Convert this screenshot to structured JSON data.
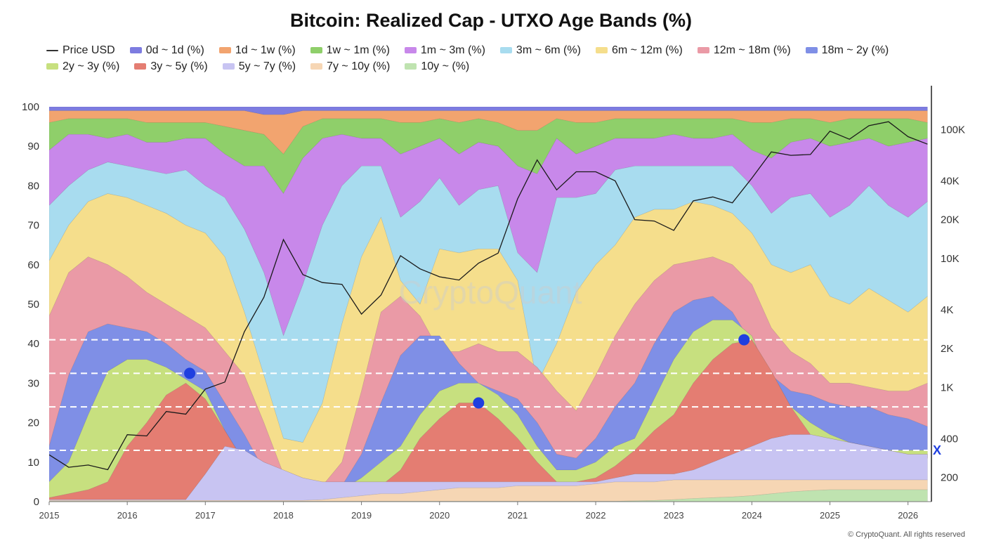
{
  "title": "Bitcoin: Realized Cap - UTXO Age Bands (%)",
  "footer": "© CryptoQuant. All rights reserved",
  "watermark": "CryptoQuant",
  "marker_label": "X",
  "legend": [
    {
      "label": "Price USD",
      "color": "#333333",
      "kind": "line"
    },
    {
      "label": "0d ~ 1d (%)",
      "color": "#7d7ce0",
      "kind": "area"
    },
    {
      "label": "1d ~ 1w (%)",
      "color": "#f2a46f",
      "kind": "area"
    },
    {
      "label": "1w ~ 1m (%)",
      "color": "#8fcf6a",
      "kind": "area"
    },
    {
      "label": "1m ~ 3m (%)",
      "color": "#c888ea",
      "kind": "area"
    },
    {
      "label": "3m ~ 6m (%)",
      "color": "#a8dcef",
      "kind": "area"
    },
    {
      "label": "6m ~ 12m (%)",
      "color": "#f5de8c",
      "kind": "area"
    },
    {
      "label": "12m ~ 18m (%)",
      "color": "#ea9aa6",
      "kind": "area"
    },
    {
      "label": "18m ~ 2y (%)",
      "color": "#7f8fe6",
      "kind": "area"
    },
    {
      "label": "2y ~ 3y (%)",
      "color": "#c7e07f",
      "kind": "area"
    },
    {
      "label": "3y ~ 5y (%)",
      "color": "#e47d72",
      "kind": "area"
    },
    {
      "label": "5y ~ 7y (%)",
      "color": "#c8c4f2",
      "kind": "area"
    },
    {
      "label": "7y ~ 10y (%)",
      "color": "#f6d6b4",
      "kind": "area"
    },
    {
      "label": "10y ~ (%)",
      "color": "#bfe3b0",
      "kind": "area"
    }
  ],
  "chart_data": {
    "type": "area",
    "title": "Bitcoin: Realized Cap - UTXO Age Bands (%)",
    "stacked": true,
    "x_ticks": [
      "2015",
      "2016",
      "2017",
      "2018",
      "2019",
      "2020",
      "2021",
      "2022",
      "2023",
      "2024",
      "2025",
      "2026"
    ],
    "ylim": [
      0,
      100
    ],
    "y_ticks": [
      "0",
      "10",
      "20",
      "30",
      "40",
      "50",
      "60",
      "70",
      "80",
      "90",
      "100"
    ],
    "y2_scale": "log",
    "y2_ticks": [
      "200",
      "400",
      "1K",
      "2K",
      "4K",
      "10K",
      "20K",
      "40K",
      "100K"
    ],
    "y2_tick_values": [
      200,
      400,
      1000,
      2000,
      4000,
      10000,
      20000,
      40000,
      100000
    ],
    "x": [
      2015.0,
      2015.25,
      2015.5,
      2015.75,
      2016.0,
      2016.25,
      2016.5,
      2016.75,
      2017.0,
      2017.25,
      2017.5,
      2017.75,
      2018.0,
      2018.25,
      2018.5,
      2018.75,
      2019.0,
      2019.25,
      2019.5,
      2019.75,
      2020.0,
      2020.25,
      2020.5,
      2020.75,
      2021.0,
      2021.25,
      2021.5,
      2021.75,
      2022.0,
      2022.25,
      2022.5,
      2022.75,
      2023.0,
      2023.25,
      2023.5,
      2023.75,
      2024.0,
      2024.25,
      2024.5,
      2024.75,
      2025.0,
      2025.25,
      2025.5,
      2025.75,
      2026.0,
      2026.25
    ],
    "cumulative_boundaries_top_down": [
      {
        "name": "0d ~ 1d (%)",
        "top": 100
      },
      {
        "name": "1d ~ 1w (%)",
        "top": [
          99,
          99,
          99,
          99,
          99,
          99,
          99,
          99,
          99,
          99,
          99,
          98,
          98,
          99,
          99,
          99,
          99,
          99,
          99,
          99,
          99,
          99,
          99,
          99,
          99,
          99,
          99,
          99,
          99,
          99,
          99,
          99,
          99,
          99,
          99,
          99,
          99,
          99,
          99,
          99,
          99,
          99,
          99,
          99,
          99,
          99
        ]
      },
      {
        "name": "1w ~ 1m (%)",
        "top": [
          96,
          97,
          97,
          97,
          97,
          96,
          96,
          96,
          96,
          95,
          94,
          93,
          88,
          95,
          97,
          97,
          97,
          97,
          96,
          96,
          97,
          96,
          97,
          96,
          94,
          94,
          97,
          96,
          96,
          97,
          97,
          97,
          97,
          97,
          97,
          97,
          96,
          96,
          97,
          97,
          96,
          97,
          97,
          97,
          97,
          96
        ]
      },
      {
        "name": "1m ~ 3m (%)",
        "top": [
          89,
          93,
          93,
          92,
          93,
          91,
          91,
          92,
          92,
          88,
          85,
          85,
          78,
          87,
          92,
          93,
          92,
          92,
          88,
          90,
          92,
          88,
          91,
          90,
          85,
          83,
          92,
          88,
          90,
          92,
          92,
          92,
          93,
          92,
          92,
          93,
          89,
          87,
          91,
          92,
          90,
          91,
          92,
          90,
          91,
          92
        ]
      },
      {
        "name": "3m ~ 6m (%)",
        "top": [
          75,
          80,
          84,
          86,
          85,
          84,
          83,
          84,
          80,
          77,
          69,
          58,
          42,
          55,
          70,
          80,
          85,
          85,
          72,
          76,
          82,
          75,
          79,
          80,
          63,
          58,
          77,
          77,
          78,
          84,
          85,
          85,
          85,
          85,
          85,
          85,
          80,
          73,
          77,
          78,
          72,
          75,
          80,
          75,
          72,
          76
        ]
      },
      {
        "name": "6m ~ 12m (%)",
        "top": [
          61,
          70,
          76,
          78,
          77,
          75,
          73,
          70,
          68,
          62,
          48,
          32,
          16,
          15,
          25,
          45,
          62,
          72,
          56,
          50,
          64,
          63,
          64,
          64,
          56,
          30,
          40,
          53,
          60,
          65,
          72,
          74,
          74,
          76,
          75,
          73,
          68,
          60,
          58,
          60,
          52,
          50,
          54,
          51,
          48,
          52
        ]
      },
      {
        "name": "12m ~ 18m (%)",
        "top": [
          47,
          58,
          62,
          60,
          57,
          53,
          50,
          47,
          44,
          38,
          32,
          20,
          7,
          4,
          4,
          10,
          28,
          48,
          52,
          47,
          38,
          38,
          40,
          38,
          38,
          34,
          28,
          23,
          32,
          42,
          50,
          56,
          60,
          61,
          62,
          60,
          55,
          44,
          38,
          35,
          30,
          30,
          29,
          28,
          28,
          30
        ]
      },
      {
        "name": "18m ~ 2y (%)",
        "top": [
          14,
          32,
          43,
          45,
          44,
          43,
          40,
          36,
          33,
          25,
          17,
          8,
          5,
          3,
          3,
          4,
          12,
          25,
          37,
          42,
          42,
          35,
          30,
          28,
          26,
          20,
          12,
          11,
          16,
          24,
          30,
          40,
          48,
          51,
          52,
          48,
          40,
          32,
          28,
          27,
          25,
          24,
          24,
          22,
          21,
          19
        ]
      },
      {
        "name": "2y ~ 3y (%)",
        "top": [
          5,
          10,
          22,
          33,
          36,
          36,
          34,
          31,
          28,
          18,
          10,
          4,
          3,
          2,
          2,
          3,
          6,
          10,
          14,
          22,
          28,
          30,
          30,
          27,
          22,
          14,
          8,
          8,
          10,
          14,
          16,
          26,
          36,
          43,
          46,
          46,
          42,
          30,
          24,
          20,
          17,
          15,
          14,
          13,
          13,
          13
        ]
      },
      {
        "name": "3y ~ 5y (%)",
        "top": [
          1,
          2,
          3,
          5,
          14,
          20,
          27,
          30,
          26,
          18,
          10,
          3,
          2,
          1,
          1,
          2,
          2,
          4,
          8,
          16,
          21,
          25,
          25,
          21,
          16,
          10,
          5,
          5,
          6,
          9,
          13,
          18,
          22,
          30,
          36,
          40,
          41,
          33,
          24,
          17,
          14,
          13,
          12,
          11,
          11,
          11
        ]
      },
      {
        "name": "5y ~ 7y (%)",
        "top": [
          0.5,
          0.5,
          0.5,
          0.5,
          0.5,
          0.5,
          0.5,
          0.5,
          7,
          14,
          13,
          10,
          8,
          6,
          5,
          5,
          5,
          5,
          5,
          5,
          5,
          5,
          5,
          5,
          5,
          5,
          5,
          5,
          5,
          6,
          7,
          7,
          7,
          8,
          10,
          12,
          14,
          16,
          17,
          17,
          16,
          15,
          14,
          13,
          12,
          12
        ]
      },
      {
        "name": "7y ~ 10y (%)",
        "top": [
          0.3,
          0.3,
          0.3,
          0.3,
          0.3,
          0.3,
          0.3,
          0.3,
          0.3,
          0.3,
          0.3,
          0.3,
          0.3,
          0.3,
          0.5,
          1,
          1.5,
          2,
          2,
          2.5,
          3,
          3.5,
          3.5,
          3.5,
          4,
          4,
          4,
          4,
          4.5,
          5,
          5,
          5,
          5.5,
          5.5,
          5.5,
          5.5,
          5.5,
          5.5,
          5.5,
          5.5,
          5.5,
          5.5,
          5.5,
          5.5,
          5.5,
          5.5
        ]
      },
      {
        "name": "10y ~ (%)",
        "top": [
          0.1,
          0.1,
          0.1,
          0.1,
          0.1,
          0.1,
          0.1,
          0.1,
          0.1,
          0.1,
          0.1,
          0.1,
          0.1,
          0.1,
          0.1,
          0.1,
          0.1,
          0.1,
          0.1,
          0.1,
          0.1,
          0.1,
          0.1,
          0.1,
          0.1,
          0.1,
          0.1,
          0.1,
          0.1,
          0.1,
          0.2,
          0.3,
          0.5,
          0.8,
          1,
          1.2,
          1.5,
          2,
          2.5,
          2.8,
          3,
          3,
          3,
          3,
          3,
          3
        ]
      }
    ],
    "price_usd": [
      300,
      240,
      250,
      230,
      430,
      420,
      650,
      620,
      970,
      1100,
      2700,
      5000,
      14000,
      7500,
      6500,
      6300,
      3700,
      5200,
      10500,
      8300,
      7200,
      6800,
      9200,
      11000,
      29000,
      58000,
      34000,
      47000,
      47000,
      40000,
      20000,
      19500,
      16500,
      28000,
      30000,
      27000,
      42000,
      67000,
      63000,
      64000,
      97000,
      84000,
      107000,
      115000,
      88000,
      77000
    ],
    "reference_lines": [
      41,
      32.5,
      24,
      13
    ],
    "highlighted_points": [
      {
        "x": 2016.8,
        "y": 32.5
      },
      {
        "x": 2020.5,
        "y": 25
      },
      {
        "x": 2023.9,
        "y": 41
      }
    ]
  }
}
